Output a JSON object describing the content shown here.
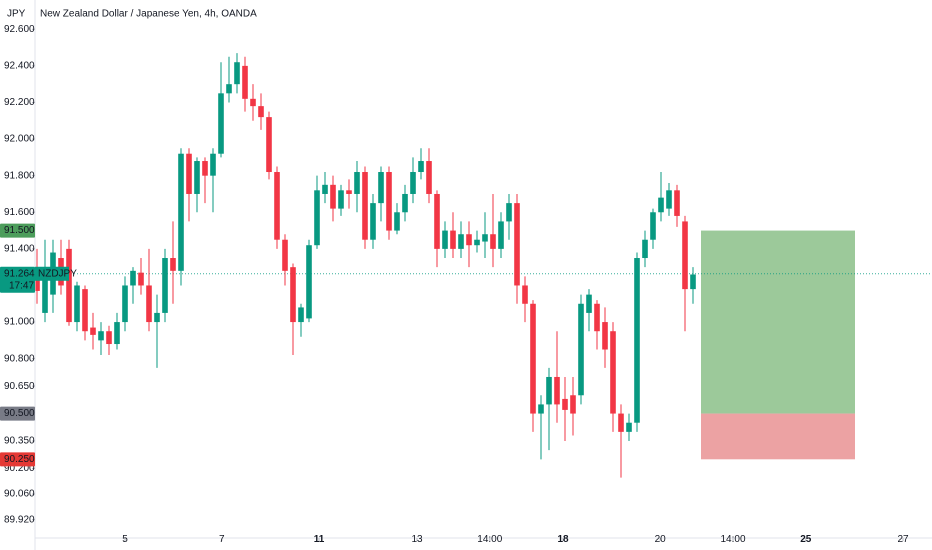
{
  "chart_data": {
    "type": "candlestick",
    "title": "New Zealand Dollar / Japanese Yen, 4h, OANDA",
    "currency": "JPY",
    "up_color": "#089981",
    "down_color": "#f23645",
    "grid": false,
    "x": [
      0,
      1,
      2,
      3,
      4,
      5,
      6,
      7,
      8,
      9,
      10,
      11,
      12,
      13,
      14,
      15,
      16,
      17,
      18,
      19,
      20,
      21,
      22,
      23,
      24,
      25,
      26,
      27,
      28,
      29,
      30,
      31,
      32,
      33,
      34,
      35,
      36,
      37,
      38,
      39,
      40,
      41,
      42,
      43,
      44,
      45,
      46,
      47,
      48,
      49,
      50,
      51,
      52,
      53,
      54,
      55,
      56,
      57,
      58,
      59,
      60,
      61,
      62,
      63,
      64,
      65,
      66,
      67,
      68,
      69,
      70,
      71,
      72,
      73,
      74,
      75,
      76,
      77,
      78,
      79,
      80,
      81,
      82
    ],
    "open": [
      91.3,
      91.05,
      91.15,
      91.35,
      91.4,
      91.0,
      91.18,
      90.97,
      90.9,
      90.95,
      90.88,
      91.0,
      91.2,
      91.27,
      91.2,
      91.0,
      91.05,
      91.35,
      91.28,
      91.92,
      91.7,
      91.88,
      91.8,
      91.92,
      92.25,
      92.3,
      92.4,
      92.22,
      92.18,
      92.12,
      91.82,
      91.45,
      91.3,
      91.0,
      91.02,
      91.42,
      91.7,
      91.75,
      91.62,
      91.72,
      91.7,
      91.82,
      91.45,
      91.65,
      91.82,
      91.5,
      91.6,
      91.7,
      91.82,
      91.88,
      91.7,
      91.4,
      91.5,
      91.4,
      91.48,
      91.42,
      91.44,
      91.48,
      91.4,
      91.55,
      91.65,
      91.2,
      91.1,
      90.5,
      90.55,
      90.7,
      90.58,
      90.6,
      90.6,
      91.05,
      91.1,
      91.0,
      90.95,
      90.5,
      90.4,
      90.45,
      91.35,
      91.45,
      91.6,
      91.62,
      91.72,
      91.55,
      91.18
    ],
    "high": [
      91.4,
      91.45,
      91.45,
      91.45,
      91.45,
      91.22,
      91.2,
      91.05,
      91.0,
      90.98,
      91.05,
      91.25,
      91.3,
      91.35,
      91.4,
      91.15,
      91.4,
      91.55,
      91.95,
      91.95,
      91.9,
      91.9,
      91.95,
      92.42,
      92.45,
      92.47,
      92.45,
      92.3,
      92.25,
      92.15,
      91.85,
      91.48,
      91.32,
      91.1,
      91.45,
      91.8,
      91.82,
      91.8,
      91.75,
      91.78,
      91.88,
      91.85,
      91.7,
      91.85,
      91.85,
      91.65,
      91.75,
      91.9,
      91.95,
      91.95,
      91.72,
      91.55,
      91.6,
      91.55,
      91.55,
      91.5,
      91.6,
      91.7,
      91.6,
      91.7,
      91.7,
      91.25,
      91.12,
      90.6,
      90.75,
      90.95,
      90.7,
      90.7,
      91.15,
      91.18,
      91.12,
      91.08,
      91.0,
      90.55,
      90.5,
      91.38,
      91.5,
      91.62,
      91.82,
      91.76,
      91.75,
      91.58,
      91.3
    ],
    "low": [
      91.1,
      91.0,
      91.05,
      91.15,
      90.98,
      90.95,
      90.9,
      90.85,
      90.82,
      90.82,
      90.85,
      90.95,
      91.1,
      91.15,
      90.95,
      90.75,
      91.0,
      91.1,
      91.2,
      91.55,
      91.6,
      91.65,
      91.6,
      91.9,
      92.2,
      92.25,
      92.15,
      92.1,
      92.05,
      91.78,
      91.4,
      91.2,
      90.82,
      90.92,
      91.0,
      91.4,
      91.65,
      91.55,
      91.58,
      91.62,
      91.6,
      91.4,
      91.4,
      91.55,
      91.45,
      91.48,
      91.55,
      91.65,
      91.78,
      91.65,
      91.3,
      91.35,
      91.35,
      91.35,
      91.3,
      91.38,
      91.35,
      91.3,
      91.35,
      91.45,
      91.1,
      91.0,
      90.4,
      90.25,
      90.3,
      90.45,
      90.35,
      90.38,
      90.55,
      90.95,
      90.85,
      90.75,
      90.4,
      90.15,
      90.35,
      90.4,
      91.3,
      91.4,
      91.55,
      91.58,
      91.52,
      90.95,
      91.1
    ],
    "close": [
      91.17,
      91.3,
      91.38,
      91.2,
      91.0,
      91.2,
      90.95,
      90.93,
      90.95,
      90.88,
      91.0,
      91.2,
      91.28,
      91.2,
      91.0,
      91.05,
      91.35,
      91.28,
      91.92,
      91.7,
      91.88,
      91.8,
      91.92,
      92.25,
      92.3,
      92.42,
      92.22,
      92.18,
      92.12,
      91.82,
      91.45,
      91.28,
      91.0,
      91.08,
      91.42,
      91.72,
      91.75,
      91.62,
      91.72,
      91.7,
      91.82,
      91.45,
      91.65,
      91.82,
      91.5,
      91.6,
      91.7,
      91.82,
      91.88,
      91.7,
      91.4,
      91.5,
      91.4,
      91.48,
      91.42,
      91.45,
      91.48,
      91.4,
      91.55,
      91.65,
      91.2,
      91.1,
      90.5,
      90.55,
      90.7,
      90.55,
      90.52,
      90.5,
      91.1,
      91.15,
      90.95,
      90.85,
      90.5,
      90.4,
      90.45,
      91.35,
      91.45,
      91.6,
      91.68,
      91.72,
      91.58,
      91.18,
      91.26
    ],
    "xlim": [
      -0.25,
      111.875
    ],
    "ylim": [
      89.82,
      92.76
    ],
    "yticks": [
      {
        "value": 92.6,
        "label": "92.600"
      },
      {
        "value": 92.4,
        "label": "92.400"
      },
      {
        "value": 92.2,
        "label": "92.200"
      },
      {
        "value": 92.0,
        "label": "92.000"
      },
      {
        "value": 91.8,
        "label": "91.800"
      },
      {
        "value": 91.6,
        "label": "91.600"
      },
      {
        "value": 91.4,
        "label": "91.400"
      },
      {
        "value": 91.0,
        "label": "91.000"
      },
      {
        "value": 90.8,
        "label": "90.800"
      },
      {
        "value": 90.65,
        "label": "90.650"
      },
      {
        "value": 90.35,
        "label": "90.350"
      },
      {
        "value": 90.2,
        "label": "90.200"
      },
      {
        "value": 90.06,
        "label": "90.060"
      },
      {
        "value": 89.92,
        "label": "89.920"
      }
    ],
    "xticks": [
      {
        "value": 11,
        "label": "5"
      },
      {
        "value": 23.1,
        "label": "7"
      },
      {
        "value": 35.25,
        "label": "11",
        "bold": true
      },
      {
        "value": 47.5,
        "label": "13"
      },
      {
        "value": 56.6,
        "label": "14:00"
      },
      {
        "value": 65.75,
        "label": "18",
        "bold": true
      },
      {
        "value": 77.9,
        "label": "20"
      },
      {
        "value": 87,
        "label": "14:00"
      },
      {
        "value": 96.1,
        "label": "25",
        "bold": true
      },
      {
        "value": 108.25,
        "label": "27"
      }
    ],
    "position": {
      "target": 91.5,
      "entry": 90.5,
      "stop": 90.25,
      "x_start": 83,
      "x_end": 102.25,
      "target_color": "#9cc99a",
      "stop_color": "#eca2a3"
    },
    "price_labels": [
      {
        "value": 91.5,
        "label": "91.500",
        "color": "#4c9d5b"
      },
      {
        "value": 90.5,
        "label": "90.500",
        "color": "#787b86"
      },
      {
        "value": 90.25,
        "label": "90.250",
        "color": "#e53935"
      }
    ],
    "current_price": {
      "value": 91.264,
      "label": "91.264",
      "symbol": "NZDJPY",
      "countdown": "17:47",
      "color": "#089981"
    }
  }
}
